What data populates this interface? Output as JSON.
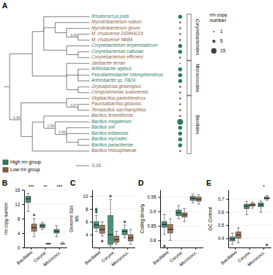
{
  "chart_data": [
    {
      "type": "tree",
      "title": "A",
      "categories": [
        "Rhodococcus jostii",
        "Mycolicibacterium rutilum",
        "Mycolicibacterium givum",
        "M. chubuense DSM44219",
        "M. chubuense NBB4",
        "Corynebacterium terpenotabicum",
        "Corynebacterium callunae",
        "Corynebacterium efficiens",
        "Janibacter terrae",
        "Arthrobacter alpinus",
        "Pseudarthrobacter chlorophenolicus",
        "Arthrobacter sp. FB24",
        "Gryloalpicola ginsengisol",
        "Compostimonas suwonensis",
        "Virgibacillus pantothenticus",
        "Paucisalbacillus globulus",
        "Tembacillus saccharophilus",
        "Bacillus licheniformis",
        "Bacillus megaterium",
        "Bacillus soli",
        "Bacillus kribbensis",
        "Bacillus mycoides",
        "Bacillus panaciterrae",
        "Bacillus rhizosphaerae"
      ],
      "values": [
        8,
        2,
        2,
        2,
        2,
        8,
        8,
        2,
        1,
        8,
        8,
        8,
        2,
        2,
        2,
        2,
        2,
        2,
        18,
        8,
        8,
        8,
        8,
        2
      ],
      "colors": [
        "#2d7a5f",
        "#8b5e3c",
        "#8b5e3c",
        "#8b5e3c",
        "#8b5e3c",
        "#2d7a5f",
        "#2d7a5f",
        "#8b5e3c",
        "#8b5e3c",
        "#2d7a5f",
        "#2d7a5f",
        "#2d7a5f",
        "#8b5e3c",
        "#8b5e3c",
        "#8b5e3c",
        "#8b5e3c",
        "#8b5e3c",
        "#8b5e3c",
        "#2d7a5f",
        "#2d7a5f",
        "#2d7a5f",
        "#2d7a5f",
        "#2d7a5f",
        "#8b5e3c"
      ],
      "tree": {
        "children": [
          {
            "children": [
              {
                "children": [
                  0,
                  {
                    "children": [
                      1,
                      {
                        "children": [
                          2,
                          {
                            "support": 0.99,
                            "children": [
                              3,
                              4
                            ]
                          }
                        ]
                      }
                    ]
                  },
                  {
                    "children": [
                      5,
                      {
                        "children": [
                          6,
                          7
                        ]
                      }
                    ]
                  }
                ]
              },
              {
                "children": [
                  8,
                  {
                    "children": [
                      9,
                      10,
                      11
                    ]
                  },
                  {
                    "children": [
                      12,
                      13
                    ]
                  }
                ]
              }
            ]
          },
          {
            "support": 0.99,
            "children": [
              {
                "children": [
                  14,
                  {
                    "support": 0.97,
                    "children": [
                      15,
                      16
                    ]
                  }
                ]
              },
              {
                "children": [
                  {
                    "children": [
                      17,
                      {
                        "support": 0.99,
                        "children": [
                          18,
                          {
                            "support": 0.88,
                            "children": [
                              19,
                              20,
                              {
                                "children": [
                                  21,
                                  22
                                ]
                              }
                            ]
                          }
                        ]
                      }
                    ]
                  },
                  23
                ]
              }
            ]
          }
        ]
      },
      "groups": [
        {
          "name": "Corynebacteriales",
          "from": "Rhodococcus jostii",
          "to": "Corynebacterium efficiens"
        },
        {
          "name": "Micrococcales",
          "from": "Janibacter terrae",
          "to": "Compostimonas suwonensis"
        },
        {
          "name": "Bacillales",
          "from": "Virgibacillus pantothenticus",
          "to": "Bacillus rhizosphaerae"
        }
      ],
      "series": [
        {
          "name": "High rrn group",
          "color": "#2d7a5f"
        },
        {
          "name": "Low rrn group",
          "color": "#8b5e3c"
        }
      ],
      "legend": "lower left",
      "size_legend": {
        "title": "rrn copy\nnumber",
        "values": [
          1,
          5,
          15
        ]
      },
      "scale_bar": 0.19
    },
    {
      "type": "box",
      "title": "B",
      "ylabel": "rrn copy number",
      "categories": [
        "Bacillales",
        "Coryne.",
        "Micrococc."
      ],
      "series": [
        {
          "color": "#2d7a5f",
          "values": [
            {
              "median": 13.5,
              "q1": 12.5,
              "q3": 14.2,
              "whislo": 10,
              "whishi": 15,
              "fliers": []
            },
            {
              "median": 6.0,
              "q1": 5.5,
              "q3": 6.5,
              "whislo": 5,
              "whishi": 7,
              "fliers": []
            },
            {
              "median": 4.5,
              "q1": 4.0,
              "q3": 5.0,
              "whislo": 3,
              "whishi": 6,
              "fliers": []
            }
          ]
        },
        {
          "color": "#8b5e3c",
          "values": [
            {
              "median": 5.5,
              "q1": 4.5,
              "q3": 6.5,
              "whislo": 3,
              "whishi": 8,
              "fliers": [
                9
              ]
            },
            {
              "median": 1.0,
              "q1": 1.0,
              "q3": 1.1,
              "whislo": 1,
              "whishi": 1.2,
              "fliers": []
            },
            {
              "median": 1.0,
              "q1": 1.0,
              "q3": 1.0,
              "whislo": 1,
              "whishi": 1.5,
              "fliers": []
            }
          ]
        }
      ],
      "ylim": [
        0,
        16
      ],
      "yticks": [
        0,
        4,
        8,
        12,
        16
      ],
      "grid": true,
      "annotations": [
        {
          "x": "Bacillales",
          "text": "***"
        },
        {
          "x": "Coryne.",
          "text": "**"
        },
        {
          "x": "Micrococc.",
          "text": "***"
        }
      ]
    },
    {
      "type": "box",
      "title": "C",
      "ylabel": "Genome Size\nMb",
      "categories": [
        "Bacillales",
        "Coryne.",
        "Micrococc."
      ],
      "series": [
        {
          "color": "#2d7a5f",
          "values": [
            {
              "median": 5.5,
              "q1": 5.0,
              "q3": 6.0,
              "whislo": 4.5,
              "whishi": 7.0,
              "fliers": [
                7.5,
                7.8,
                8.0
              ]
            },
            {
              "median": 4.0,
              "q1": 2.5,
              "q3": 7.0,
              "whislo": 2.2,
              "whishi": 9.5,
              "fliers": [
                10.0
              ]
            },
            {
              "median": 4.5,
              "q1": 4.0,
              "q3": 4.8,
              "whislo": 3.5,
              "whishi": 5.5,
              "fliers": [
                6.0
              ]
            }
          ]
        },
        {
          "color": "#8b5e3c",
          "values": [
            {
              "median": 4.8,
              "q1": 4.2,
              "q3": 5.5,
              "whislo": 3.8,
              "whishi": 6.0,
              "fliers": [
                3.0
              ]
            },
            {
              "median": 3.2,
              "q1": 2.8,
              "q3": 3.8,
              "whislo": 2.5,
              "whishi": 4.5,
              "fliers": []
            },
            {
              "median": 3.5,
              "q1": 3.0,
              "q3": 4.0,
              "whislo": 2.5,
              "whishi": 4.8,
              "fliers": []
            }
          ]
        }
      ],
      "ylim": [
        2,
        11
      ],
      "yticks": [
        4,
        6,
        8,
        10
      ],
      "grid": true
    },
    {
      "type": "box",
      "title": "D",
      "ylabel": "Coding density",
      "categories": [
        "Bacillales",
        "Coryne.",
        "Micrococc."
      ],
      "series": [
        {
          "color": "#2d7a5f",
          "values": [
            {
              "median": 0.855,
              "q1": 0.845,
              "q3": 0.865,
              "whislo": 0.82,
              "whishi": 0.89,
              "fliers": [
                0.78
              ]
            },
            {
              "median": 0.895,
              "q1": 0.885,
              "q3": 0.905,
              "whislo": 0.875,
              "whishi": 0.92,
              "fliers": []
            },
            {
              "median": 0.945,
              "q1": 0.938,
              "q3": 0.952,
              "whislo": 0.93,
              "whishi": 0.96,
              "fliers": []
            }
          ]
        },
        {
          "color": "#8b5e3c",
          "values": [
            {
              "median": 0.838,
              "q1": 0.825,
              "q3": 0.855,
              "whislo": 0.8,
              "whishi": 0.875,
              "fliers": []
            },
            {
              "median": 0.888,
              "q1": 0.88,
              "q3": 0.895,
              "whislo": 0.865,
              "whishi": 0.91,
              "fliers": []
            },
            {
              "median": 0.942,
              "q1": 0.935,
              "q3": 0.95,
              "whislo": 0.925,
              "whishi": 0.958,
              "fliers": []
            }
          ]
        }
      ],
      "ylim": [
        0.775,
        0.975
      ],
      "yticks": [
        0.8,
        0.85,
        0.9,
        0.95
      ],
      "grid": true
    },
    {
      "type": "box",
      "title": "E",
      "ylabel": "GC Content",
      "categories": [
        "Bacillales",
        "Coryne.",
        "Micrococc."
      ],
      "series": [
        {
          "color": "#2d7a5f",
          "values": [
            {
              "median": 0.395,
              "q1": 0.38,
              "q3": 0.41,
              "whislo": 0.355,
              "whishi": 0.44,
              "fliers": []
            },
            {
              "median": 0.645,
              "q1": 0.625,
              "q3": 0.66,
              "whislo": 0.58,
              "whishi": 0.68,
              "fliers": []
            },
            {
              "median": 0.655,
              "q1": 0.64,
              "q3": 0.67,
              "whislo": 0.6,
              "whishi": 0.685,
              "fliers": []
            }
          ]
        },
        {
          "color": "#8b5e3c",
          "values": [
            {
              "median": 0.425,
              "q1": 0.4,
              "q3": 0.45,
              "whislo": 0.365,
              "whishi": 0.48,
              "fliers": []
            },
            {
              "median": 0.655,
              "q1": 0.645,
              "q3": 0.665,
              "whislo": 0.63,
              "whishi": 0.675,
              "fliers": []
            },
            {
              "median": 0.705,
              "q1": 0.7,
              "q3": 0.715,
              "whislo": 0.69,
              "whishi": 0.725,
              "fliers": [
                0.35
              ]
            }
          ]
        }
      ],
      "ylim": [
        0.33,
        0.77
      ],
      "yticks": [
        0.4,
        0.5,
        0.6,
        0.7
      ],
      "grid": true,
      "annotations": [
        {
          "x": "Micrococc.",
          "text": "*"
        }
      ]
    }
  ]
}
